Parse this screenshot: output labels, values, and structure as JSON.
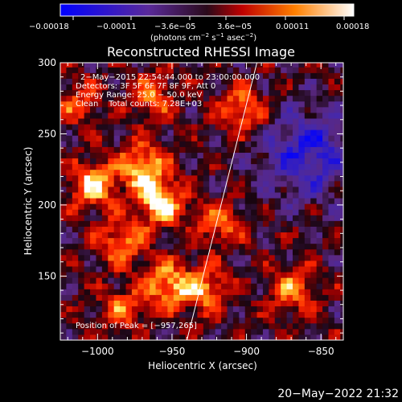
{
  "colorbar": {
    "tick_labels": [
      "−0.00018",
      "−0.00011",
      "−3.6e−05",
      "3.6e−05",
      "0.00011",
      "0.00018"
    ],
    "units_main": "(photons cm",
    "units_exp1": "−2",
    "units_mid1": " s",
    "units_exp2": "−1",
    "units_mid2": " asec",
    "units_exp3": "−2",
    "units_end": ")",
    "range": [
      -0.00018,
      0.00018
    ]
  },
  "chart_data": {
    "type": "heatmap",
    "title": "Reconstructed RHESSI Image",
    "xlabel": "Heliocentric X (arcsec)",
    "ylabel": "Heliocentric Y (arcsec)",
    "xlim": [
      -1025,
      -835
    ],
    "ylim": [
      105,
      300
    ],
    "x_ticks": [
      -1000,
      -950,
      -900,
      -850
    ],
    "x_tick_labels": [
      "−1000",
      "−950",
      "−900",
      "−850"
    ],
    "y_ticks": [
      150,
      200,
      250,
      300
    ],
    "y_tick_labels": [
      "150",
      "200",
      "250",
      "300"
    ],
    "colormap": "blue-purple-red-orange-yellow-white (signed)",
    "info_lines": [
      "2−May−2015 22:54:44.000 to 23:00:00.000",
      "Detectors: 3F 5F 6F 7F 8F 9F, Att 0",
      "Energy Range: 25.0 − 50.0 keV",
      "Clean    Total counts: 7.28E+03"
    ],
    "peak_label": "Position of Peak = [−957,265]",
    "peak": [
      -957,
      265
    ],
    "limb_line": [
      [
        -940,
        105
      ],
      [
        -893,
        300
      ]
    ],
    "sources": [
      {
        "x": -960,
        "y": 200,
        "strength": 1.0
      },
      {
        "x": -972,
        "y": 225,
        "strength": 0.9
      },
      {
        "x": -1005,
        "y": 212,
        "strength": 0.9
      },
      {
        "x": -985,
        "y": 172,
        "strength": 0.75
      },
      {
        "x": -955,
        "y": 142,
        "strength": 0.85
      },
      {
        "x": -930,
        "y": 138,
        "strength": 0.75
      },
      {
        "x": -965,
        "y": 275,
        "strength": 0.6
      },
      {
        "x": -905,
        "y": 265,
        "strength": 0.75
      },
      {
        "x": -920,
        "y": 185,
        "strength": 0.6
      },
      {
        "x": -870,
        "y": 138,
        "strength": 0.65
      },
      {
        "x": -1015,
        "y": 270,
        "strength": 0.5
      },
      {
        "x": -985,
        "y": 125,
        "strength": 0.55
      }
    ],
    "negative_region": [
      -860,
      235
    ]
  },
  "timestamp": "20−May−2022 21:32"
}
